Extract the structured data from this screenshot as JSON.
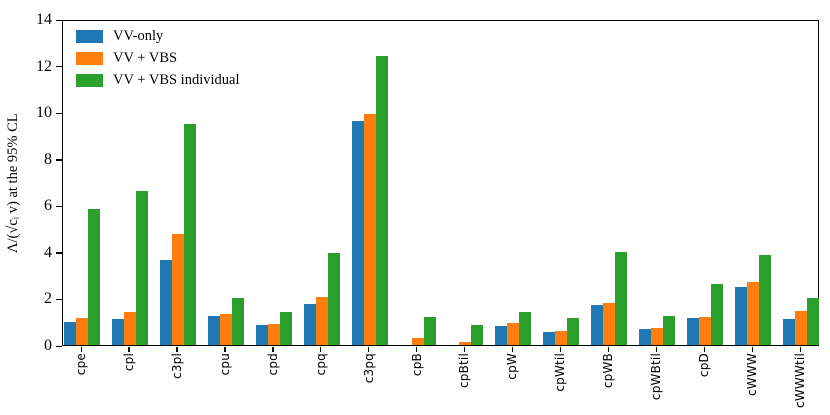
{
  "chart_data": {
    "type": "bar",
    "title": "",
    "xlabel": "",
    "ylabel": "Λ/(√cᵢ v) at the 95% CL",
    "ylim": [
      0,
      14
    ],
    "yticks": [
      0,
      2,
      4,
      6,
      8,
      10,
      12,
      14
    ],
    "grid": false,
    "legend_position": "upper-left",
    "categories": [
      "cpe",
      "cpl",
      "c3pl",
      "cpu",
      "cpd",
      "cpq",
      "c3pq",
      "cpB",
      "cpBtil",
      "cpW",
      "cpWtil",
      "cpWB",
      "cpWBtil",
      "cpD",
      "cWWW",
      "cWWWtil"
    ],
    "series": [
      {
        "name": "VV-only",
        "color": "#1f77b4",
        "values": [
          1.0,
          1.1,
          3.65,
          1.25,
          0.85,
          1.75,
          9.6,
          0.0,
          0.0,
          0.8,
          0.55,
          1.7,
          0.7,
          1.15,
          2.5,
          1.1
        ]
      },
      {
        "name": "VV + VBS",
        "color": "#ff7f0e",
        "values": [
          1.15,
          1.4,
          4.75,
          1.35,
          0.9,
          2.05,
          9.9,
          0.3,
          0.15,
          0.95,
          0.6,
          1.8,
          0.75,
          1.2,
          2.7,
          1.45
        ]
      },
      {
        "name": "VV + VBS individual",
        "color": "#2ca02c",
        "values": [
          5.85,
          6.6,
          9.5,
          2.0,
          1.4,
          3.95,
          12.4,
          1.2,
          0.85,
          1.4,
          1.15,
          4.0,
          1.25,
          2.6,
          3.85,
          2.0
        ]
      }
    ]
  }
}
